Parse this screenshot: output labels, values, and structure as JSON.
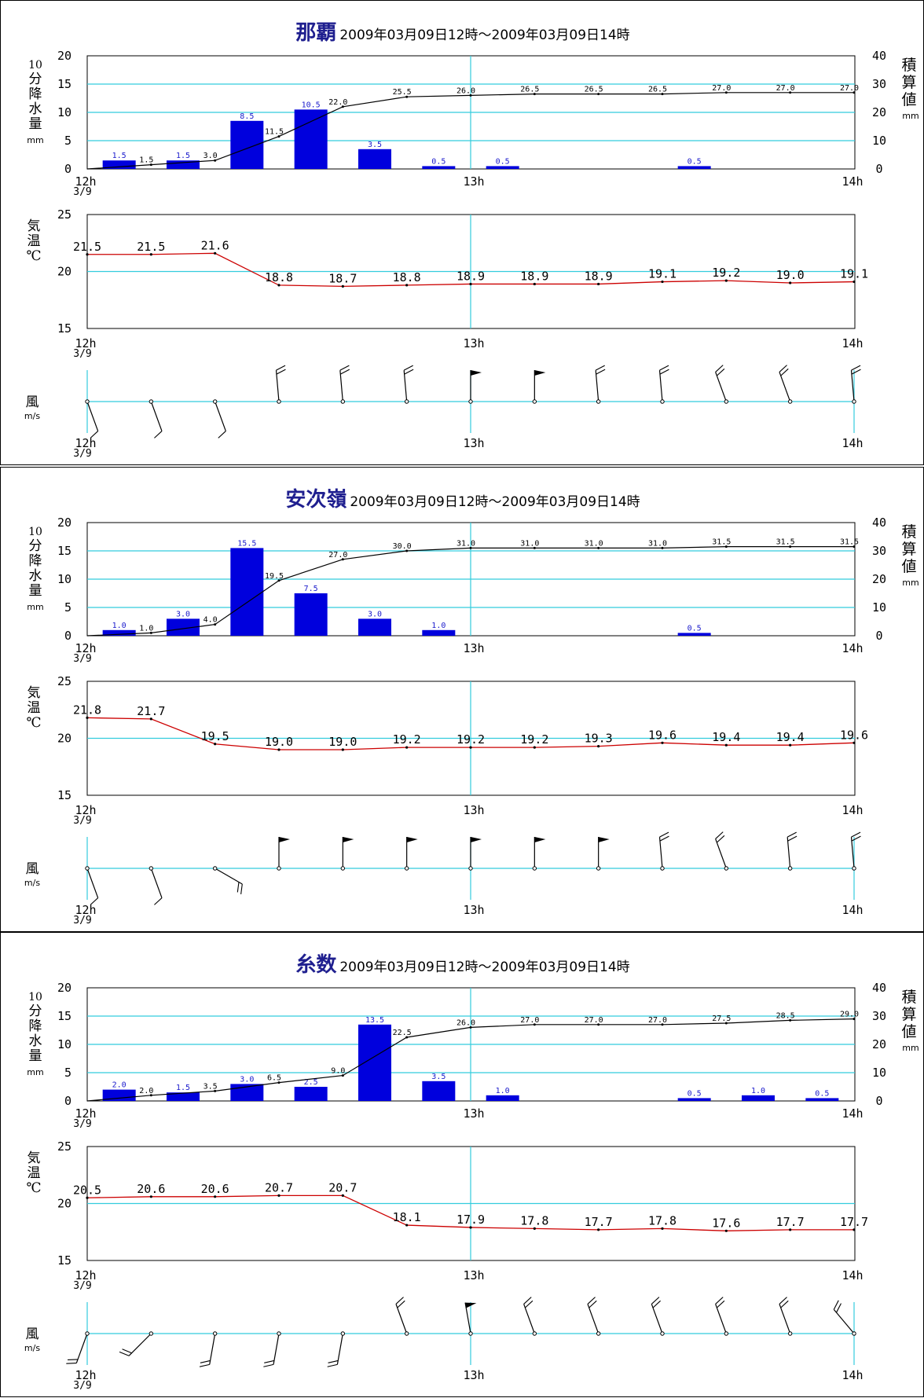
{
  "period": "2009年03月09日12時～2009年03月09日14時",
  "labels": {
    "rain_axis": [
      "10",
      "分",
      "降",
      "水",
      "量"
    ],
    "rain_unit": "mm",
    "cum_axis": [
      "積",
      "算",
      "値"
    ],
    "cum_unit": "mm",
    "temp_axis": [
      "気",
      "温",
      "℃"
    ],
    "wind_axis": "風",
    "wind_unit": "m/s",
    "x_start": "12h",
    "x_start_date": "3/9",
    "x_mid": "13h",
    "x_end": "14h"
  },
  "colors": {
    "bar": "#0000dd",
    "bar_label": "#1a1acc",
    "cumulative_line": "#000000",
    "temperature_line": "#cc0000",
    "gridline": "#33ccdd",
    "title": "#1f1f8f"
  },
  "chart_data": [
    {
      "station": "那覇",
      "type": "bar",
      "x": [
        "12:10",
        "12:20",
        "12:30",
        "12:40",
        "12:50",
        "13:00",
        "13:10",
        "13:20",
        "13:30",
        "13:40",
        "13:50",
        "14:00"
      ],
      "rain_10min": [
        1.5,
        1.5,
        8.5,
        10.5,
        3.5,
        0.5,
        0.5,
        null,
        null,
        0.5,
        null,
        null
      ],
      "rain_cumulative": [
        1.5,
        3.0,
        11.5,
        22.0,
        25.5,
        26.0,
        26.5,
        26.5,
        26.5,
        27.0,
        27.0,
        27.0
      ],
      "rain_ylim": [
        0,
        20
      ],
      "rain_yticks": [
        0,
        5,
        10,
        15,
        20
      ],
      "cum_ylim": [
        0,
        40
      ],
      "cum_yticks": [
        0,
        10,
        20,
        30,
        40
      ],
      "temp_x": [
        "12:00",
        "12:10",
        "12:20",
        "12:30",
        "12:40",
        "12:50",
        "13:00",
        "13:10",
        "13:20",
        "13:30",
        "13:40",
        "13:50",
        "14:00"
      ],
      "temperature": [
        21.5,
        21.5,
        21.6,
        18.8,
        18.7,
        18.8,
        18.9,
        18.9,
        18.9,
        19.1,
        19.2,
        19.0,
        19.1
      ],
      "temp_ylim": [
        15,
        25
      ],
      "temp_yticks": [
        15,
        20,
        25
      ],
      "wind_x": [
        "12:00",
        "12:10",
        "12:20",
        "12:30",
        "12:40",
        "12:50",
        "13:00",
        "13:10",
        "13:20",
        "13:30",
        "13:40",
        "13:50",
        "14:00"
      ],
      "wind_barbs": [
        {
          "dir": 340,
          "speed": 10
        },
        {
          "dir": 340,
          "speed": 10
        },
        {
          "dir": 340,
          "speed": 10
        },
        {
          "dir": 175,
          "speed": 20
        },
        {
          "dir": 175,
          "speed": 20
        },
        {
          "dir": 175,
          "speed": 20
        },
        {
          "dir": 180,
          "speed": 50
        },
        {
          "dir": 180,
          "speed": 50
        },
        {
          "dir": 175,
          "speed": 20
        },
        {
          "dir": 175,
          "speed": 20
        },
        {
          "dir": 160,
          "speed": 20
        },
        {
          "dir": 160,
          "speed": 20
        },
        {
          "dir": 175,
          "speed": 20
        }
      ]
    },
    {
      "station": "安次嶺",
      "type": "bar",
      "x": [
        "12:10",
        "12:20",
        "12:30",
        "12:40",
        "12:50",
        "13:00",
        "13:10",
        "13:20",
        "13:30",
        "13:40",
        "13:50",
        "14:00"
      ],
      "rain_10min": [
        1.0,
        3.0,
        15.5,
        7.5,
        3.0,
        1.0,
        null,
        null,
        null,
        0.5,
        null,
        null
      ],
      "rain_cumulative": [
        1.0,
        4.0,
        19.5,
        27.0,
        30.0,
        31.0,
        31.0,
        31.0,
        31.0,
        31.5,
        31.5,
        31.5
      ],
      "rain_ylim": [
        0,
        20
      ],
      "rain_yticks": [
        0,
        5,
        10,
        15,
        20
      ],
      "cum_ylim": [
        0,
        40
      ],
      "cum_yticks": [
        0,
        10,
        20,
        30,
        40
      ],
      "temp_x": [
        "12:00",
        "12:10",
        "12:20",
        "12:30",
        "12:40",
        "12:50",
        "13:00",
        "13:10",
        "13:20",
        "13:30",
        "13:40",
        "13:50",
        "14:00"
      ],
      "temperature": [
        21.8,
        21.7,
        19.5,
        19.0,
        19.0,
        19.2,
        19.2,
        19.2,
        19.3,
        19.6,
        19.4,
        19.4,
        19.6
      ],
      "temp_ylim": [
        15,
        25
      ],
      "temp_yticks": [
        15,
        20,
        25
      ],
      "wind_x": [
        "12:00",
        "12:10",
        "12:20",
        "12:30",
        "12:40",
        "12:50",
        "13:00",
        "13:10",
        "13:20",
        "13:30",
        "13:40",
        "13:50",
        "14:00"
      ],
      "wind_barbs": [
        {
          "dir": 340,
          "speed": 10
        },
        {
          "dir": 340,
          "speed": 10
        },
        {
          "dir": 300,
          "speed": 20
        },
        {
          "dir": 180,
          "speed": 50
        },
        {
          "dir": 180,
          "speed": 50
        },
        {
          "dir": 180,
          "speed": 50
        },
        {
          "dir": 180,
          "speed": 50
        },
        {
          "dir": 180,
          "speed": 50
        },
        {
          "dir": 180,
          "speed": 50
        },
        {
          "dir": 175,
          "speed": 20
        },
        {
          "dir": 160,
          "speed": 20
        },
        {
          "dir": 175,
          "speed": 20
        },
        {
          "dir": 175,
          "speed": 20
        }
      ]
    },
    {
      "station": "糸数",
      "type": "bar",
      "x": [
        "12:10",
        "12:20",
        "12:30",
        "12:40",
        "12:50",
        "13:00",
        "13:10",
        "13:20",
        "13:30",
        "13:40",
        "13:50",
        "14:00"
      ],
      "rain_10min": [
        2.0,
        1.5,
        3.0,
        2.5,
        13.5,
        3.5,
        1.0,
        null,
        null,
        0.5,
        1.0,
        0.5
      ],
      "rain_cumulative": [
        2.0,
        3.5,
        6.5,
        9.0,
        22.5,
        26.0,
        27.0,
        27.0,
        27.0,
        27.5,
        28.5,
        29.0
      ],
      "rain_ylim": [
        0,
        20
      ],
      "rain_yticks": [
        0,
        5,
        10,
        15,
        20
      ],
      "cum_ylim": [
        0,
        40
      ],
      "cum_yticks": [
        0,
        10,
        20,
        30,
        40
      ],
      "temp_x": [
        "12:00",
        "12:10",
        "12:20",
        "12:30",
        "12:40",
        "12:50",
        "13:00",
        "13:10",
        "13:20",
        "13:30",
        "13:40",
        "13:50",
        "14:00"
      ],
      "temperature": [
        20.5,
        20.6,
        20.6,
        20.7,
        20.7,
        18.1,
        17.9,
        17.8,
        17.7,
        17.8,
        17.6,
        17.7,
        17.7
      ],
      "temp_ylim": [
        15,
        25
      ],
      "temp_yticks": [
        15,
        20,
        25
      ],
      "wind_x": [
        "12:00",
        "12:10",
        "12:20",
        "12:30",
        "12:40",
        "12:50",
        "13:00",
        "13:10",
        "13:20",
        "13:30",
        "13:40",
        "13:50",
        "14:00"
      ],
      "wind_barbs": [
        {
          "dir": 20,
          "speed": 20
        },
        {
          "dir": 45,
          "speed": 20
        },
        {
          "dir": 10,
          "speed": 20
        },
        {
          "dir": 10,
          "speed": 20
        },
        {
          "dir": 10,
          "speed": 20
        },
        {
          "dir": 160,
          "speed": 20
        },
        {
          "dir": 170,
          "speed": 50
        },
        {
          "dir": 160,
          "speed": 20
        },
        {
          "dir": 160,
          "speed": 20
        },
        {
          "dir": 160,
          "speed": 20
        },
        {
          "dir": 160,
          "speed": 20
        },
        {
          "dir": 160,
          "speed": 20
        },
        {
          "dir": 140,
          "speed": 20
        }
      ]
    }
  ]
}
